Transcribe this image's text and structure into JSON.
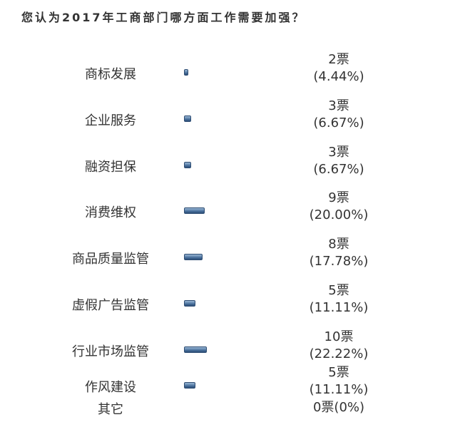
{
  "question": "您认为2017年工商部门哪方面工作需要加强？",
  "chart_data": {
    "type": "bar",
    "orientation": "horizontal",
    "title": "您认为2017年工商部门哪方面工作需要加强？",
    "categories": [
      "商标发展",
      "企业服务",
      "融资担保",
      "消费维权",
      "商品质量监管",
      "虚假广告监管",
      "行业市场监管",
      "作风建设",
      "其它"
    ],
    "series": [
      {
        "values": [
          2,
          3,
          3,
          9,
          8,
          5,
          10,
          5,
          0
        ]
      }
    ],
    "percentages": [
      4.44,
      6.67,
      6.67,
      20.0,
      17.78,
      11.11,
      22.22,
      11.11,
      0
    ],
    "value_labels": [
      "2票",
      "3票",
      "3票",
      "9票",
      "8票",
      "5票",
      "10票",
      "5票",
      "0票"
    ],
    "percent_labels": [
      "(4.44%)",
      "(6.67%)",
      "(6.67%)",
      "(20.00%)",
      "(17.78%)",
      "(11.11%)",
      "(22.22%)",
      "(11.11%)",
      "(0%)"
    ],
    "xlim": [
      0,
      10
    ],
    "colors": {
      "bar": "#3e6592",
      "bar_border": "#2e4d73",
      "text": "#333333"
    }
  }
}
